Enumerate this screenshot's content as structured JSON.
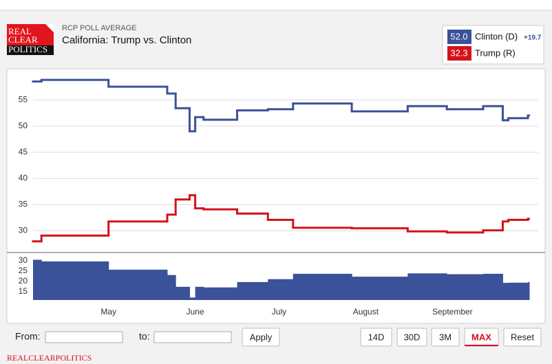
{
  "header": {
    "logo": [
      "REAL",
      "CLEAR",
      "POLITICS"
    ],
    "kicker": "RCP POLL AVERAGE"
  },
  "controls": {
    "from": "From:",
    "to": "to:",
    "apply": "Apply",
    "ranges": [
      "14D",
      "30D",
      "3M",
      "MAX"
    ],
    "reset": "Reset"
  },
  "footer": "REALCLEARPOLITICS",
  "chart_data": [
    {
      "type": "step-line",
      "title": "California: Trump vs. Clinton",
      "x": [
        0,
        3,
        27,
        48,
        51,
        56,
        58,
        61,
        73,
        84,
        93,
        114,
        134,
        148,
        161,
        168,
        170,
        177
      ],
      "xlim": [
        0,
        177
      ],
      "xticks": [
        {
          "value": 27,
          "label": "May"
        },
        {
          "value": 58,
          "label": "June"
        },
        {
          "value": 88,
          "label": "July"
        },
        {
          "value": 119,
          "label": "August"
        },
        {
          "value": 150,
          "label": "September"
        }
      ],
      "ylim": [
        26,
        60
      ],
      "yticks": [
        30,
        35,
        40,
        45,
        50,
        55
      ],
      "grid": true,
      "series": [
        {
          "name": "Clinton (D)",
          "color": "#3b5199",
          "latest_label": "52.0",
          "spread_label": "+19.7",
          "values": [
            58.5,
            58.8,
            57.5,
            56.2,
            53.4,
            49.0,
            51.7,
            51.2,
            53.0,
            53.2,
            54.3,
            52.8,
            53.8,
            53.2,
            53.8,
            51.1,
            51.5,
            52.0
          ]
        },
        {
          "name": "Trump (R)",
          "color": "#d5111a",
          "latest_label": "32.3",
          "values": [
            28.0,
            29.1,
            31.8,
            33.1,
            36.0,
            36.8,
            34.3,
            34.1,
            33.3,
            32.1,
            30.6,
            30.5,
            29.9,
            29.7,
            30.1,
            31.8,
            32.1,
            32.3
          ]
        }
      ]
    },
    {
      "type": "step-area",
      "x": [
        0,
        3,
        27,
        48,
        51,
        56,
        58,
        61,
        73,
        84,
        93,
        114,
        134,
        148,
        161,
        168,
        170,
        177
      ],
      "xlim": [
        0,
        177
      ],
      "ylim": [
        11,
        33
      ],
      "yticks": [
        15,
        20,
        25,
        30
      ],
      "color": "#3b5199",
      "values": [
        30.5,
        29.7,
        25.7,
        23.1,
        17.4,
        12.2,
        17.4,
        17.1,
        19.7,
        21.1,
        23.7,
        22.3,
        23.9,
        23.5,
        23.7,
        19.3,
        19.4,
        19.7
      ]
    }
  ]
}
